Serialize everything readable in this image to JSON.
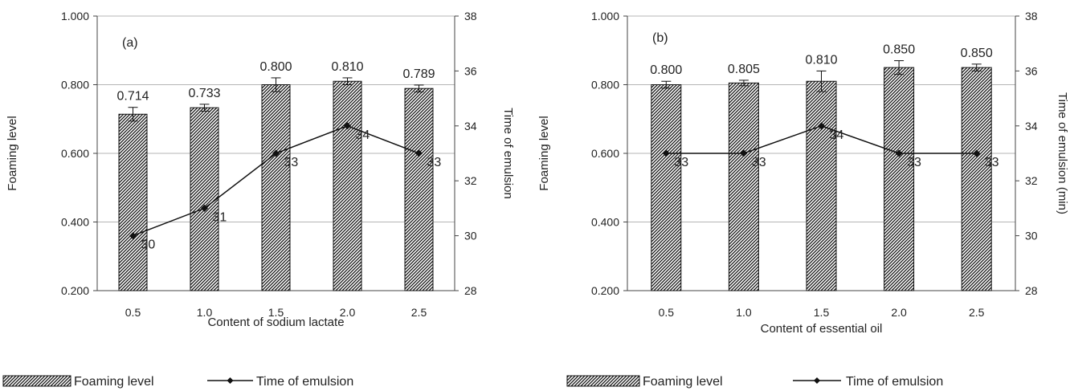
{
  "legend": {
    "bar_label": "Foaming level",
    "line_label": "Time of emulsion"
  },
  "chart_data": [
    {
      "type": "bar",
      "panel_label": "(a)",
      "categories": [
        "0.5",
        "1.0",
        "1.5",
        "2.0",
        "2.5"
      ],
      "xlabel": "Content of sodium lactate",
      "ylabel": "Foaming level",
      "ylim": [
        0.2,
        1.0
      ],
      "yticks": [
        "0.200",
        "0.400",
        "0.600",
        "0.800",
        "1.000"
      ],
      "y2label": "Time of emulsion",
      "y2lim": [
        28,
        38
      ],
      "y2ticks": [
        "28",
        "30",
        "32",
        "34",
        "36",
        "38"
      ],
      "grid": true,
      "series": [
        {
          "name": "Foaming level",
          "type": "bar",
          "values": [
            0.714,
            0.733,
            0.8,
            0.81,
            0.789
          ],
          "labels": [
            "0.714",
            "0.733",
            "0.800",
            "0.810",
            "0.789"
          ],
          "errors": [
            0.02,
            0.01,
            0.02,
            0.01,
            0.01
          ]
        },
        {
          "name": "Time of emulsion",
          "type": "line",
          "axis": "right",
          "values": [
            30,
            31,
            33,
            34,
            33
          ],
          "labels": [
            "30",
            "31",
            "33",
            "34",
            "33"
          ]
        }
      ]
    },
    {
      "type": "bar",
      "panel_label": "(b)",
      "categories": [
        "0.5",
        "1.0",
        "1.5",
        "2.0",
        "2.5"
      ],
      "xlabel": "Content of essential oil",
      "ylabel": "Foaming level",
      "ylim": [
        0.2,
        1.0
      ],
      "yticks": [
        "0.200",
        "0.400",
        "0.600",
        "0.800",
        "1.000"
      ],
      "y2label": "Time of emulsion (min)",
      "y2lim": [
        28,
        38
      ],
      "y2ticks": [
        "28",
        "30",
        "32",
        "34",
        "36",
        "38"
      ],
      "grid": true,
      "series": [
        {
          "name": "Foaming level",
          "type": "bar",
          "values": [
            0.8,
            0.805,
            0.81,
            0.85,
            0.85
          ],
          "labels": [
            "0.800",
            "0.805",
            "0.810",
            "0.850",
            "0.850"
          ],
          "errors": [
            0.01,
            0.008,
            0.03,
            0.02,
            0.01
          ]
        },
        {
          "name": "Time of emulsion",
          "type": "line",
          "axis": "right",
          "values": [
            33,
            33,
            34,
            33,
            33
          ],
          "labels": [
            "33",
            "33",
            "34",
            "33",
            "33"
          ]
        }
      ]
    }
  ]
}
